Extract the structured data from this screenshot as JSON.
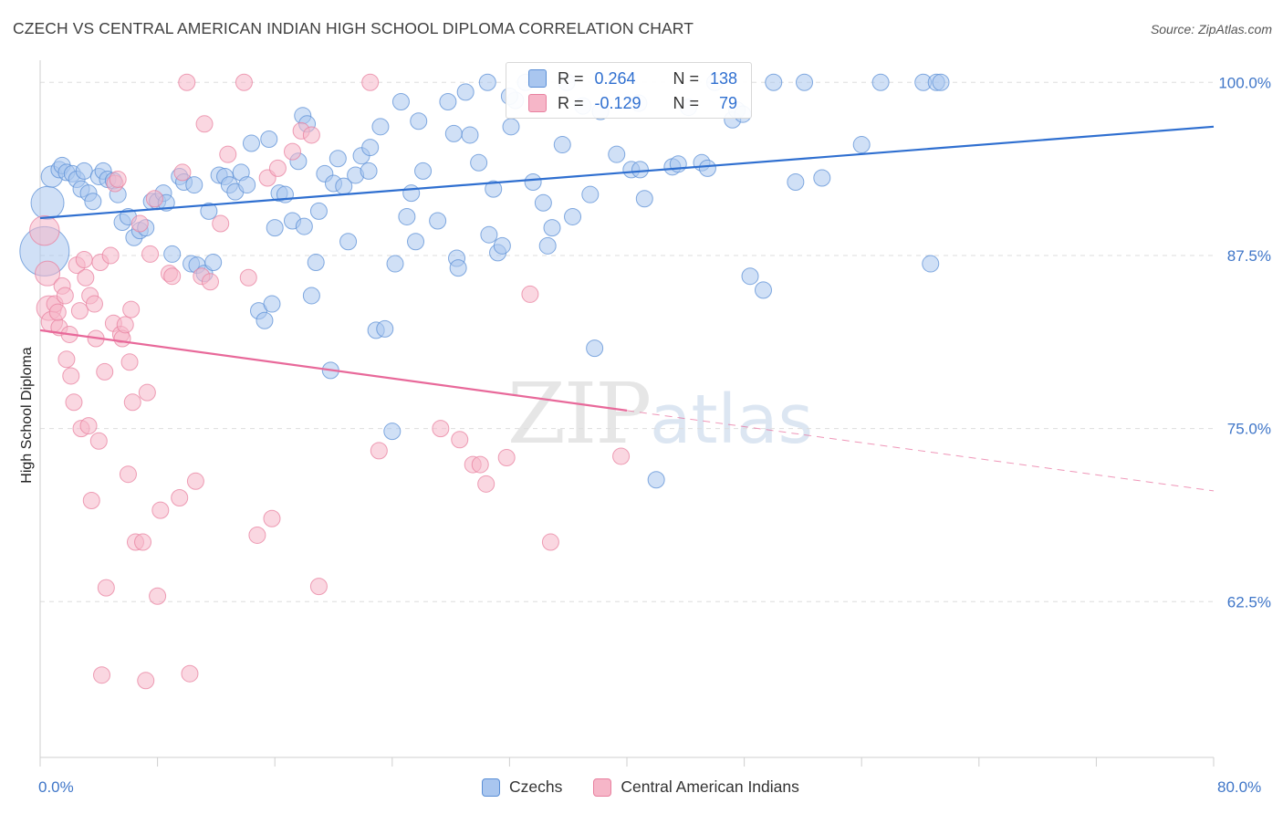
{
  "header": {
    "title": "CZECH VS CENTRAL AMERICAN INDIAN HIGH SCHOOL DIPLOMA CORRELATION CHART",
    "source": "Source: ZipAtlas.com"
  },
  "watermark": {
    "zip": "ZIP",
    "atlas": "atlas"
  },
  "stats": {
    "czech": {
      "r_label": "R =",
      "r": "0.264",
      "n_label": "N =",
      "n": "138"
    },
    "cai": {
      "r_label": "R =",
      "r": "-0.129",
      "n_label": "N =",
      "n": "79"
    }
  },
  "legend": {
    "czech": "Czechs",
    "cai": "Central American Indians"
  },
  "colors": {
    "czech_fill": "#a9c6ef",
    "czech_stroke": "#5b8fd6",
    "czech_line": "#2f6fd0",
    "cai_fill": "#f6b6c8",
    "cai_stroke": "#e8809f",
    "cai_line": "#e8699a",
    "tick_label": "#3f76c8",
    "grid": "#dddddd"
  },
  "chart_data": {
    "type": "scatter",
    "title": "CZECH VS CENTRAL AMERICAN INDIAN HIGH SCHOOL DIPLOMA CORRELATION CHART",
    "xlabel": "",
    "ylabel": "High School Diploma",
    "xlim": [
      0,
      80
    ],
    "ylim": [
      51.25,
      101.6
    ],
    "x_tick_labels": [
      "0.0%",
      "80.0%"
    ],
    "y_ticks": [
      62.5,
      75.0,
      87.5,
      100.0
    ],
    "y_tick_labels": [
      "62.5%",
      "75.0%",
      "87.5%",
      "100.0%"
    ],
    "grid": "horizontal dashed",
    "legend_position": "bottom-center",
    "series": [
      {
        "name": "Czechs",
        "r": 0.264,
        "n": 138,
        "trend": {
          "x": [
            0,
            80
          ],
          "y": [
            90.2,
            96.8
          ]
        },
        "points": [
          [
            0.3,
            87.8,
            3
          ],
          [
            0.5,
            91.3,
            2
          ],
          [
            0.8,
            93.2,
            1.3
          ],
          [
            1.3,
            93.7,
            1
          ],
          [
            1.5,
            94.0,
            1
          ],
          [
            1.8,
            93.5,
            1
          ],
          [
            2.2,
            93.4,
            1
          ],
          [
            2.5,
            93.0,
            1
          ],
          [
            2.8,
            92.3,
            1
          ],
          [
            3.0,
            93.6,
            1
          ],
          [
            3.3,
            92.0,
            1
          ],
          [
            3.6,
            91.4,
            1
          ],
          [
            4.0,
            93.2,
            1
          ],
          [
            4.3,
            93.6,
            1
          ],
          [
            4.6,
            93.0,
            1
          ],
          [
            5.0,
            92.9,
            1
          ],
          [
            5.3,
            91.9,
            1
          ],
          [
            5.6,
            89.9,
            1
          ],
          [
            6.0,
            90.3,
            1
          ],
          [
            6.4,
            88.8,
            1
          ],
          [
            6.8,
            89.3,
            1
          ],
          [
            7.2,
            89.5,
            1
          ],
          [
            7.6,
            91.4,
            1
          ],
          [
            8.0,
            91.4,
            1
          ],
          [
            8.4,
            92.0,
            1
          ],
          [
            8.6,
            91.3,
            1
          ],
          [
            9.0,
            87.6,
            1
          ],
          [
            9.5,
            93.2,
            1
          ],
          [
            9.8,
            92.8,
            1
          ],
          [
            10.3,
            86.9,
            1
          ],
          [
            10.7,
            86.8,
            1
          ],
          [
            11.2,
            86.2,
            1
          ],
          [
            10.5,
            92.6,
            1
          ],
          [
            11.5,
            90.7,
            1
          ],
          [
            11.8,
            87.0,
            1
          ],
          [
            12.2,
            93.3,
            1
          ],
          [
            12.6,
            93.2,
            1
          ],
          [
            12.9,
            92.6,
            1
          ],
          [
            13.3,
            92.1,
            1
          ],
          [
            13.7,
            93.5,
            1
          ],
          [
            14.1,
            92.6,
            1
          ],
          [
            14.4,
            95.6,
            1
          ],
          [
            14.9,
            83.5,
            1
          ],
          [
            15.3,
            82.8,
            1
          ],
          [
            15.6,
            95.9,
            1
          ],
          [
            15.8,
            84.0,
            1
          ],
          [
            16.0,
            89.5,
            1
          ],
          [
            16.3,
            92.0,
            1
          ],
          [
            16.7,
            91.9,
            1
          ],
          [
            17.2,
            90.0,
            1
          ],
          [
            17.6,
            94.3,
            1
          ],
          [
            17.9,
            97.6,
            1
          ],
          [
            18.2,
            97.0,
            1
          ],
          [
            18.0,
            89.6,
            1
          ],
          [
            18.5,
            84.6,
            1
          ],
          [
            18.8,
            87.0,
            1
          ],
          [
            19.0,
            90.7,
            1
          ],
          [
            19.4,
            93.4,
            1
          ],
          [
            19.8,
            79.2,
            1
          ],
          [
            20.0,
            92.7,
            1
          ],
          [
            20.3,
            94.5,
            1
          ],
          [
            20.7,
            92.5,
            1
          ],
          [
            21.0,
            88.5,
            1
          ],
          [
            21.5,
            93.3,
            1
          ],
          [
            21.9,
            94.7,
            1
          ],
          [
            22.4,
            93.6,
            1
          ],
          [
            22.5,
            95.3,
            1
          ],
          [
            22.9,
            82.1,
            1
          ],
          [
            23.2,
            96.8,
            1
          ],
          [
            23.5,
            82.2,
            1
          ],
          [
            24.0,
            74.8,
            1
          ],
          [
            24.2,
            86.9,
            1
          ],
          [
            24.6,
            98.6,
            1
          ],
          [
            25.0,
            90.3,
            1
          ],
          [
            25.3,
            92.0,
            1
          ],
          [
            25.6,
            88.5,
            1
          ],
          [
            25.8,
            97.2,
            1
          ],
          [
            26.1,
            93.6,
            1
          ],
          [
            27.1,
            90.0,
            1
          ],
          [
            27.8,
            98.6,
            1
          ],
          [
            28.2,
            96.3,
            1
          ],
          [
            28.4,
            87.3,
            1
          ],
          [
            28.5,
            86.6,
            1
          ],
          [
            29.0,
            99.3,
            1
          ],
          [
            29.3,
            96.2,
            1
          ],
          [
            29.9,
            94.2,
            1
          ],
          [
            30.6,
            89.0,
            1
          ],
          [
            30.9,
            92.3,
            1
          ],
          [
            31.2,
            87.7,
            1
          ],
          [
            31.5,
            88.2,
            1
          ],
          [
            32.1,
            96.8,
            1
          ],
          [
            32.4,
            98.7,
            1
          ],
          [
            33.1,
            100.0,
            1
          ],
          [
            33.6,
            92.8,
            1
          ],
          [
            34.3,
            91.3,
            1
          ],
          [
            34.6,
            88.2,
            1
          ],
          [
            34.9,
            89.5,
            1
          ],
          [
            35.6,
            95.5,
            1
          ],
          [
            35.9,
            100.0,
            1
          ],
          [
            36.3,
            90.3,
            1
          ],
          [
            37.0,
            98.3,
            1
          ],
          [
            37.5,
            91.9,
            1
          ],
          [
            37.8,
            80.8,
            1
          ],
          [
            38.2,
            97.9,
            1
          ],
          [
            39.3,
            94.8,
            1
          ],
          [
            40.3,
            93.7,
            1
          ],
          [
            40.9,
            93.7,
            1
          ],
          [
            40.8,
            98.5,
            1
          ],
          [
            41.2,
            91.6,
            1
          ],
          [
            42.0,
            71.3,
            1
          ],
          [
            43.1,
            93.9,
            1
          ],
          [
            43.5,
            94.1,
            1
          ],
          [
            44.2,
            98.2,
            1
          ],
          [
            45.1,
            94.2,
            1
          ],
          [
            45.5,
            93.8,
            1
          ],
          [
            46.0,
            100.0,
            1
          ],
          [
            47.2,
            97.3,
            1
          ],
          [
            47.5,
            98.0,
            1
          ],
          [
            47.9,
            97.7,
            1
          ],
          [
            48.4,
            86.0,
            1
          ],
          [
            49.3,
            85.0,
            1
          ],
          [
            50.0,
            100.0,
            1
          ],
          [
            51.5,
            92.8,
            1
          ],
          [
            52.1,
            100.0,
            1
          ],
          [
            53.3,
            93.1,
            1
          ],
          [
            56.0,
            95.5,
            1
          ],
          [
            57.3,
            100.0,
            1
          ],
          [
            60.2,
            100.0,
            1
          ],
          [
            61.1,
            100.0,
            1
          ],
          [
            61.4,
            100.0,
            1
          ],
          [
            60.7,
            86.9,
            1
          ],
          [
            30.5,
            100.0,
            1
          ],
          [
            32.0,
            99.0,
            1
          ]
        ]
      },
      {
        "name": "Central American Indians",
        "r": -0.129,
        "n": 79,
        "trend": {
          "x": [
            0,
            40
          ],
          "y": [
            82.1,
            76.3
          ]
        },
        "trend_dashed": {
          "x": [
            40,
            80
          ],
          "y": [
            76.3,
            70.5
          ]
        },
        "points": [
          [
            0.3,
            89.3,
            1.8
          ],
          [
            0.5,
            86.2,
            1.5
          ],
          [
            0.6,
            83.7,
            1.5
          ],
          [
            0.8,
            82.7,
            1.3
          ],
          [
            1.0,
            84.0,
            1
          ],
          [
            1.3,
            82.3,
            1
          ],
          [
            1.5,
            85.3,
            1
          ],
          [
            1.2,
            83.4,
            1
          ],
          [
            1.7,
            84.6,
            1
          ],
          [
            1.8,
            80.0,
            1
          ],
          [
            2.0,
            81.8,
            1
          ],
          [
            2.1,
            78.8,
            1
          ],
          [
            2.3,
            76.9,
            1
          ],
          [
            2.5,
            86.8,
            1
          ],
          [
            2.7,
            83.5,
            1
          ],
          [
            2.8,
            75.0,
            1
          ],
          [
            3.0,
            87.2,
            1
          ],
          [
            3.1,
            85.9,
            1
          ],
          [
            3.3,
            75.2,
            1
          ],
          [
            3.4,
            84.6,
            1
          ],
          [
            3.5,
            69.8,
            1
          ],
          [
            3.7,
            84.0,
            1
          ],
          [
            3.8,
            81.5,
            1
          ],
          [
            4.0,
            74.1,
            1
          ],
          [
            4.1,
            87.0,
            1
          ],
          [
            4.2,
            57.2,
            1
          ],
          [
            4.4,
            79.1,
            1
          ],
          [
            4.5,
            63.5,
            1
          ],
          [
            4.8,
            87.5,
            1
          ],
          [
            5.0,
            82.6,
            1
          ],
          [
            5.1,
            92.7,
            1
          ],
          [
            5.3,
            93.0,
            1
          ],
          [
            5.5,
            81.8,
            1
          ],
          [
            5.6,
            81.5,
            1
          ],
          [
            5.8,
            82.5,
            1
          ],
          [
            6.0,
            71.7,
            1
          ],
          [
            6.1,
            79.8,
            1
          ],
          [
            6.2,
            83.6,
            1
          ],
          [
            6.3,
            76.9,
            1
          ],
          [
            6.5,
            66.8,
            1
          ],
          [
            6.8,
            89.8,
            1
          ],
          [
            7.0,
            66.8,
            1
          ],
          [
            7.2,
            56.8,
            1
          ],
          [
            7.3,
            77.6,
            1
          ],
          [
            7.5,
            87.6,
            1
          ],
          [
            7.8,
            91.6,
            1
          ],
          [
            8.0,
            62.9,
            1
          ],
          [
            8.2,
            69.1,
            1
          ],
          [
            8.8,
            86.2,
            1
          ],
          [
            9.0,
            86.0,
            1
          ],
          [
            9.5,
            70.0,
            1
          ],
          [
            9.7,
            93.5,
            1
          ],
          [
            10.0,
            100.0,
            1
          ],
          [
            10.2,
            57.3,
            1
          ],
          [
            10.6,
            71.2,
            1
          ],
          [
            11.0,
            86.0,
            1
          ],
          [
            11.2,
            97.0,
            1
          ],
          [
            11.6,
            85.6,
            1
          ],
          [
            12.3,
            89.8,
            1
          ],
          [
            12.8,
            94.8,
            1
          ],
          [
            13.9,
            100.0,
            1
          ],
          [
            14.2,
            85.9,
            1
          ],
          [
            14.8,
            67.3,
            1
          ],
          [
            15.5,
            93.1,
            1
          ],
          [
            15.8,
            68.5,
            1
          ],
          [
            16.2,
            93.8,
            1
          ],
          [
            17.2,
            95.0,
            1
          ],
          [
            17.8,
            96.5,
            1
          ],
          [
            18.5,
            96.2,
            1
          ],
          [
            19.0,
            63.6,
            1
          ],
          [
            22.5,
            100.0,
            1
          ],
          [
            23.1,
            73.4,
            1
          ],
          [
            27.3,
            75.0,
            1
          ],
          [
            28.6,
            74.2,
            1
          ],
          [
            29.5,
            72.4,
            1
          ],
          [
            30.0,
            72.4,
            1
          ],
          [
            30.4,
            71.0,
            1
          ],
          [
            31.8,
            72.9,
            1
          ],
          [
            33.4,
            84.7,
            1
          ],
          [
            34.8,
            66.8,
            1
          ],
          [
            39.6,
            73.0,
            1
          ]
        ]
      }
    ]
  }
}
